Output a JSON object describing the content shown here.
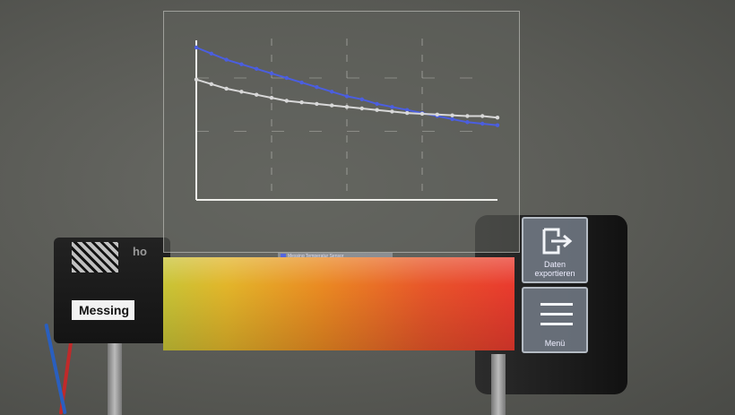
{
  "chart_panel": {
    "legend_text": "Messing Temperatur Sensor",
    "series_colors": [
      "#4b5ee0",
      "#d8d8d8"
    ]
  },
  "chart_data": {
    "type": "line",
    "xlim": [
      0,
      100
    ],
    "ylim": [
      0,
      100
    ],
    "grid": true,
    "series": [
      {
        "values_x": [
          0,
          5,
          10,
          15,
          20,
          25,
          30,
          35,
          40,
          45,
          50,
          55,
          60,
          65,
          70,
          75,
          80,
          85,
          90,
          95,
          100
        ],
        "values_y": [
          100,
          96,
          92,
          89,
          86,
          83,
          80,
          77,
          74,
          71,
          68,
          66,
          63,
          61,
          59,
          57,
          55,
          53,
          51,
          50,
          49
        ]
      },
      {
        "values_x": [
          0,
          5,
          10,
          15,
          20,
          25,
          30,
          35,
          40,
          45,
          50,
          55,
          60,
          65,
          70,
          75,
          80,
          85,
          90,
          95,
          100
        ],
        "values_y": [
          79,
          76,
          73,
          71,
          69,
          67,
          65,
          64,
          63,
          62,
          61,
          60,
          59,
          58,
          57,
          56.5,
          56,
          55.5,
          55,
          55,
          54
        ]
      }
    ]
  },
  "apparatus": {
    "sample_label": "Messing",
    "clamp_text": "ho"
  },
  "buttons": {
    "export": {
      "label": "Daten exportieren",
      "icon": "export-icon"
    },
    "menu": {
      "label": "Menü",
      "icon": "hamburger-menu-icon"
    }
  }
}
